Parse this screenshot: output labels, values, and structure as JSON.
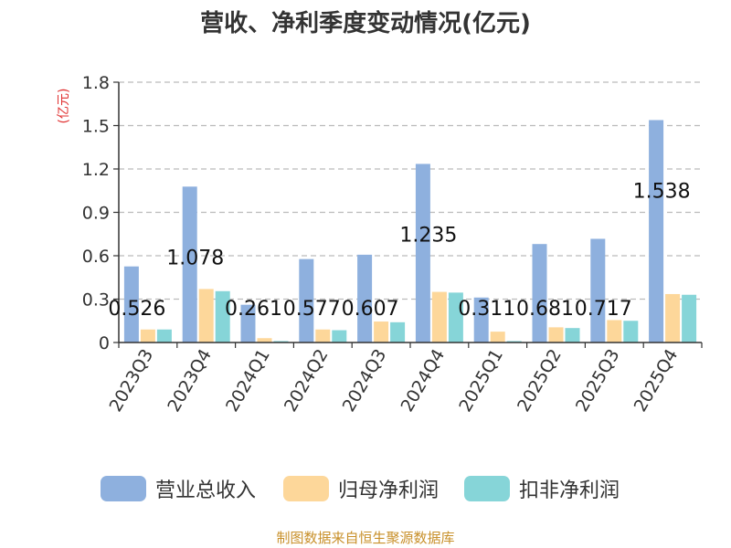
{
  "chart_data": {
    "type": "bar",
    "title": "营收、净利季度变动情况(亿元)",
    "ylabel": "(亿元)",
    "ylim": [
      0,
      1.8
    ],
    "yticks": [
      "0",
      "0.3",
      "0.6",
      "0.9",
      "1.2",
      "1.5",
      "1.8"
    ],
    "categories": [
      "2023Q3",
      "2023Q4",
      "2024Q1",
      "2024Q2",
      "2024Q3",
      "2024Q4",
      "2025Q1",
      "2025Q2",
      "2025Q3",
      "2025Q4"
    ],
    "series": [
      {
        "name": "营业总收入",
        "color": "#8eb0de",
        "values": [
          0.526,
          1.078,
          0.261,
          0.577,
          0.607,
          1.235,
          0.311,
          0.681,
          0.717,
          1.538
        ]
      },
      {
        "name": "归母净利润",
        "color": "#fdd79a",
        "values": [
          0.09,
          0.37,
          0.03,
          0.09,
          0.145,
          0.35,
          0.075,
          0.105,
          0.155,
          0.335
        ]
      },
      {
        "name": "扣非净利润",
        "color": "#86d5d8",
        "values": [
          0.09,
          0.355,
          0.01,
          0.085,
          0.14,
          0.345,
          0.01,
          0.1,
          0.15,
          0.33
        ]
      }
    ],
    "data_labels": [
      "0.526",
      "1.078",
      "0.261",
      "0.577",
      "0.607",
      "1.235",
      "0.311",
      "0.681",
      "0.717",
      "1.538"
    ],
    "grid": true,
    "legend": "bottom"
  },
  "source_text": "制图数据来自恒生聚源数据库"
}
